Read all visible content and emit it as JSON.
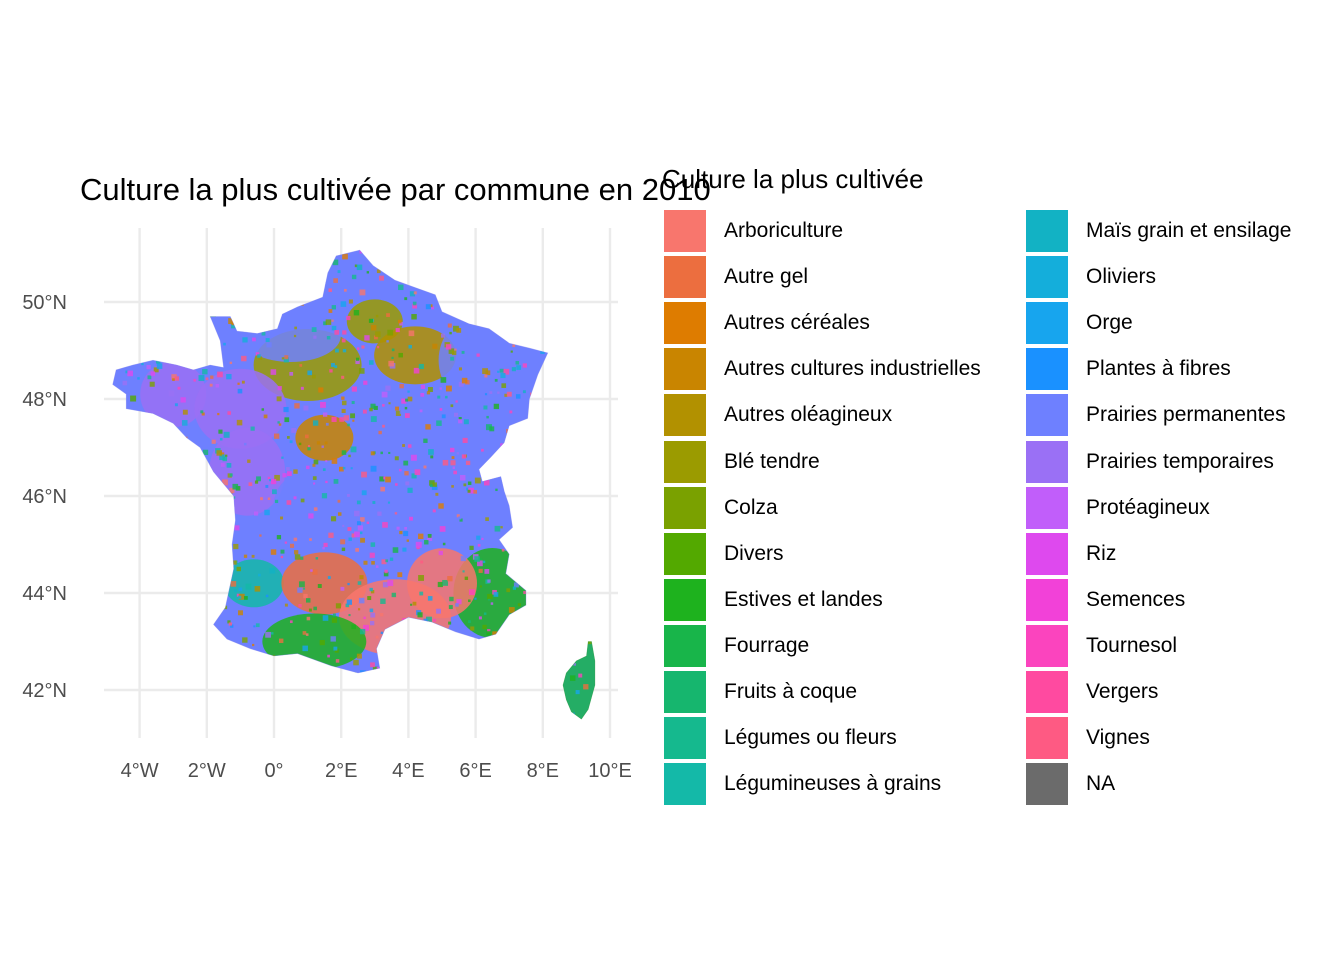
{
  "title": "Culture la plus cultivée par commune en 2010",
  "legend": {
    "title": "Culture la plus cultivée",
    "items": [
      {
        "label": "Arboriculture",
        "color": "#F8766D"
      },
      {
        "label": "Autre gel",
        "color": "#EC6E3F"
      },
      {
        "label": "Autres céréales",
        "color": "#DE7C00"
      },
      {
        "label": "Autres cultures industrielles",
        "color": "#C98500"
      },
      {
        "label": "Autres oléagineux",
        "color": "#B29100"
      },
      {
        "label": "Blé tendre",
        "color": "#9B9B00"
      },
      {
        "label": "Colza",
        "color": "#7AA100"
      },
      {
        "label": "Divers",
        "color": "#53A900"
      },
      {
        "label": "Estives et landes",
        "color": "#1EB21E"
      },
      {
        "label": "Fourrage",
        "color": "#18B54A"
      },
      {
        "label": "Fruits à coque",
        "color": "#16B66E"
      },
      {
        "label": "Légumes ou fleurs",
        "color": "#15B98E"
      },
      {
        "label": "Légumineuses à grains",
        "color": "#14B9A8"
      },
      {
        "label": "Maïs grain et ensilage",
        "color": "#12B2C4"
      },
      {
        "label": "Oliviers",
        "color": "#14AEDB"
      },
      {
        "label": "Orge",
        "color": "#17A5EE"
      },
      {
        "label": "Plantes à fibres",
        "color": "#1A91FF"
      },
      {
        "label": "Prairies permanentes",
        "color": "#6E80FF"
      },
      {
        "label": "Prairies temporaires",
        "color": "#9A70F5"
      },
      {
        "label": "Protéagineux",
        "color": "#C15EFA"
      },
      {
        "label": "Riz",
        "color": "#DE49EE"
      },
      {
        "label": "Semences",
        "color": "#F241D8"
      },
      {
        "label": "Tournesol",
        "color": "#FB44BE"
      },
      {
        "label": "Vergers",
        "color": "#FF4AA0"
      },
      {
        "label": "Vignes",
        "color": "#FE5A83"
      },
      {
        "label": "NA",
        "color": "#6B6B6B"
      }
    ]
  },
  "axes": {
    "x_ticks": [
      "4°W",
      "2°W",
      "0°",
      "2°E",
      "4°E",
      "6°E",
      "8°E",
      "10°E"
    ],
    "y_ticks": [
      "50°N",
      "48°N",
      "46°N",
      "44°N",
      "42°N"
    ],
    "x_values": [
      -4,
      -2,
      0,
      2,
      4,
      6,
      8,
      10
    ],
    "y_values": [
      50,
      48,
      46,
      44,
      42
    ]
  },
  "regions": [
    {
      "lon": 3.0,
      "lat": 49.6,
      "color": "#9B9B00"
    },
    {
      "lon": 4.2,
      "lat": 48.9,
      "color": "#B29100"
    },
    {
      "lon": 1.0,
      "lat": 48.7,
      "color": "#9B9B00"
    },
    {
      "lon": 6.0,
      "lat": 48.8,
      "color": "#6E80FF"
    },
    {
      "lon": 0.5,
      "lat": 49.3,
      "color": "#6E80FF"
    },
    {
      "lon": -3.0,
      "lat": 48.1,
      "color": "#9A70F5"
    },
    {
      "lon": -1.0,
      "lat": 47.8,
      "color": "#9A70F5"
    },
    {
      "lon": 1.5,
      "lat": 47.2,
      "color": "#C98500"
    },
    {
      "lon": 4.0,
      "lat": 47.1,
      "color": "#6E80FF"
    },
    {
      "lon": 6.2,
      "lat": 46.8,
      "color": "#6E80FF"
    },
    {
      "lon": -0.8,
      "lat": 46.5,
      "color": "#9A70F5"
    },
    {
      "lon": 2.8,
      "lat": 45.6,
      "color": "#6E80FF"
    },
    {
      "lon": 1.0,
      "lat": 45.8,
      "color": "#6E80FF"
    },
    {
      "lon": 5.2,
      "lat": 45.5,
      "color": "#6E80FF"
    },
    {
      "lon": -0.6,
      "lat": 44.2,
      "color": "#14B9A8"
    },
    {
      "lon": 1.5,
      "lat": 44.2,
      "color": "#EC6E3F"
    },
    {
      "lon": 3.6,
      "lat": 43.5,
      "color": "#F8766D"
    },
    {
      "lon": 6.5,
      "lat": 44.0,
      "color": "#1EB21E"
    },
    {
      "lon": 1.2,
      "lat": 43.0,
      "color": "#1EB21E"
    },
    {
      "lon": 5.0,
      "lat": 44.2,
      "color": "#F8766D"
    },
    {
      "lon": 9.1,
      "lat": 42.2,
      "color": "#18B54A"
    }
  ]
}
